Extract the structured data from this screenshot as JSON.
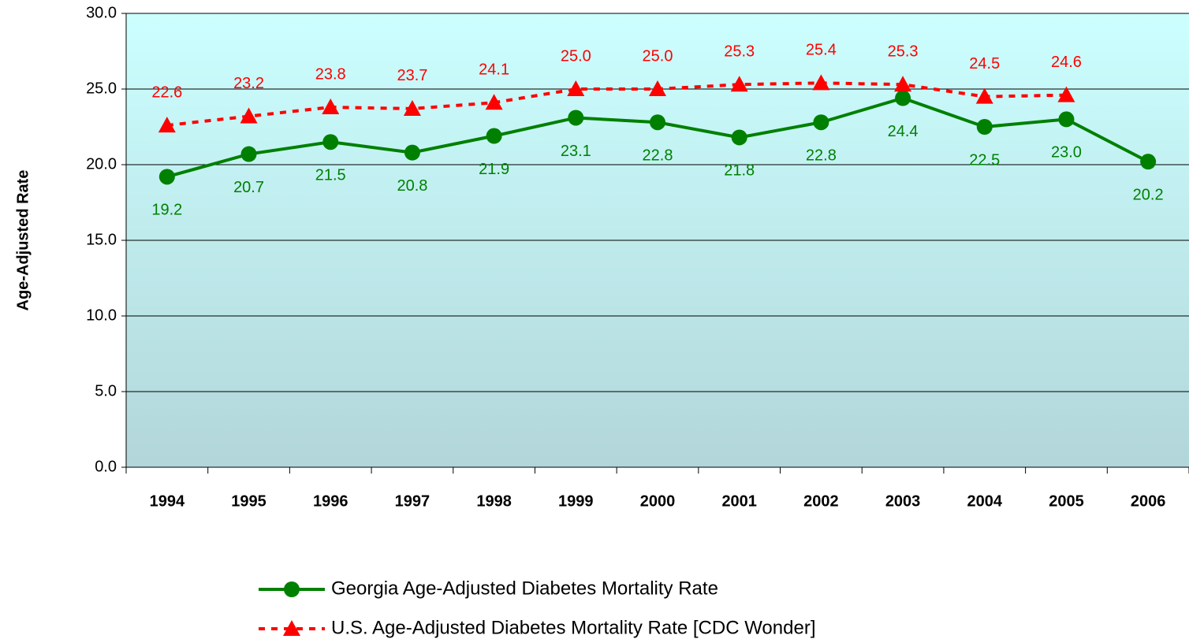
{
  "chart_data": {
    "type": "line",
    "y_label": "Age-Adjusted Rate",
    "categories": [
      "1994",
      "1995",
      "1996",
      "1997",
      "1998",
      "1999",
      "2000",
      "2001",
      "2002",
      "2003",
      "2004",
      "2005",
      "2006"
    ],
    "series": [
      {
        "name": "Georgia Age-Adjusted Diabetes Mortality Rate",
        "color": "#008000",
        "marker": "circle",
        "dash": false,
        "values": [
          19.2,
          20.7,
          21.5,
          20.8,
          21.9,
          23.1,
          22.8,
          21.8,
          22.8,
          24.4,
          22.5,
          23.0,
          20.2
        ],
        "value_labels": [
          "19.2",
          "20.7",
          "21.5",
          "20.8",
          "21.9",
          "23.1",
          "22.8",
          "21.8",
          "22.8",
          "24.4",
          "22.5",
          "23.0",
          "20.2"
        ]
      },
      {
        "name": "U.S. Age-Adjusted Diabetes Mortality Rate [CDC Wonder]",
        "color": "#ff0000",
        "marker": "triangle",
        "dash": true,
        "values": [
          22.6,
          23.2,
          23.8,
          23.7,
          24.1,
          25.0,
          25.0,
          25.3,
          25.4,
          25.3,
          24.5,
          24.6,
          null
        ],
        "value_labels": [
          "22.6",
          "23.2",
          "23.8",
          "23.7",
          "24.1",
          "25.0",
          "25.0",
          "25.3",
          "25.4",
          "25.3",
          "24.5",
          "24.6",
          null
        ]
      }
    ],
    "ylim": [
      0,
      30
    ],
    "yticks": [
      {
        "value": 0,
        "label": "0.0"
      },
      {
        "value": 5,
        "label": "5.0"
      },
      {
        "value": 10,
        "label": "10.0"
      },
      {
        "value": 15,
        "label": "15.0"
      },
      {
        "value": 20,
        "label": "20.0"
      },
      {
        "value": 25,
        "label": "25.0"
      },
      {
        "value": 30,
        "label": "30.0"
      }
    ],
    "grid": true
  }
}
